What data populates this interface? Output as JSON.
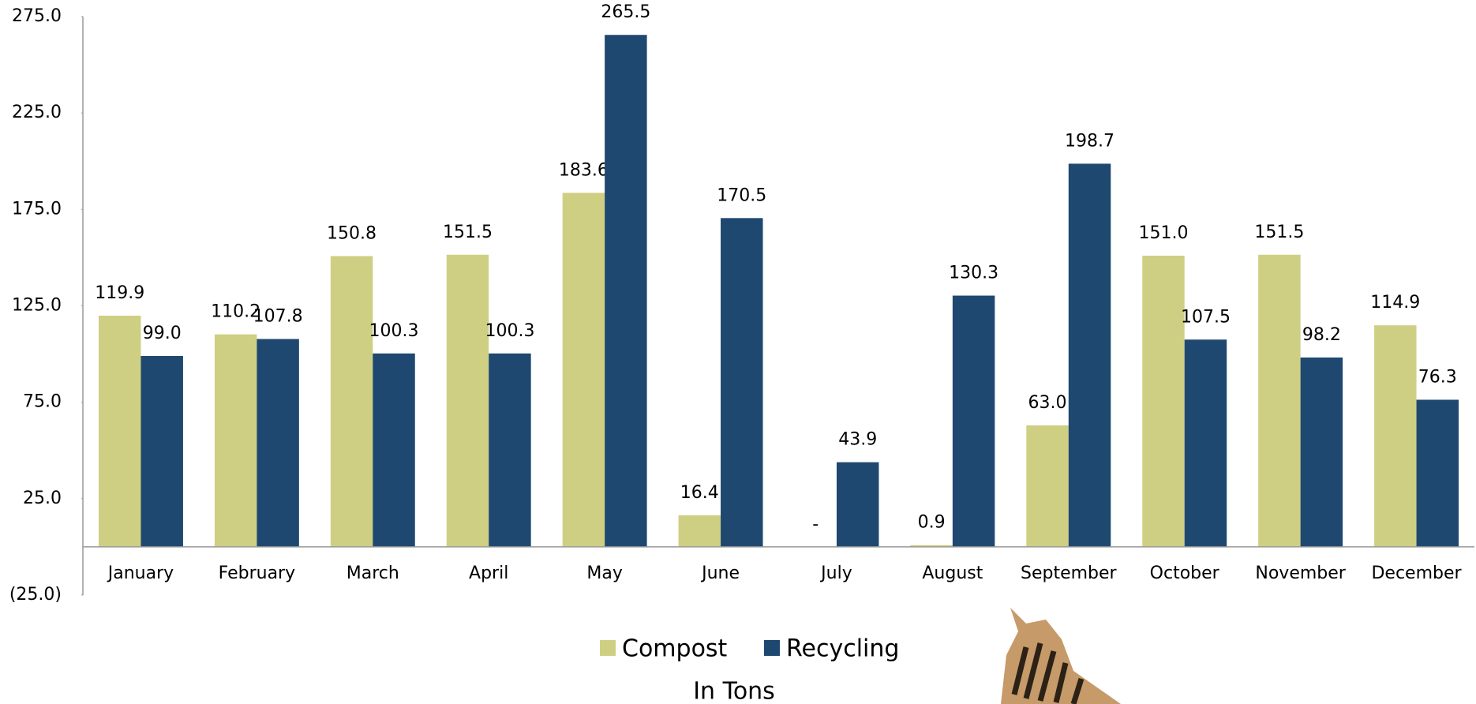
{
  "chart_data": {
    "type": "bar",
    "x_label": "In Tons",
    "categories": [
      "January",
      "February",
      "March",
      "April",
      "May",
      "June",
      "July",
      "August",
      "September",
      "October",
      "November",
      "December"
    ],
    "series": [
      {
        "name": "Compost",
        "color": "#cfcf83",
        "values": [
          119.9,
          110.2,
          150.8,
          151.5,
          183.6,
          16.4,
          0,
          0.9,
          63.0,
          151.0,
          151.5,
          114.9
        ],
        "value_labels": [
          "119.9",
          "110.2",
          "150.8",
          "151.5",
          "183.6",
          "16.4",
          "-",
          "0.9",
          "63.0",
          "151.0",
          "151.5",
          "114.9"
        ]
      },
      {
        "name": "Recycling",
        "color": "#1f4870",
        "values": [
          99.0,
          107.8,
          100.3,
          100.3,
          265.5,
          170.5,
          43.9,
          130.3,
          198.7,
          107.5,
          98.2,
          76.3
        ],
        "value_labels": [
          "99.0",
          "107.8",
          "100.3",
          "100.3",
          "265.5",
          "170.5",
          "43.9",
          "130.3",
          "198.7",
          "107.5",
          "98.2",
          "76.3"
        ]
      }
    ],
    "ylim": [
      -25,
      275
    ],
    "yticks": [
      {
        "value": -25,
        "label": "(25.0)"
      },
      {
        "value": 25,
        "label": "25.0"
      },
      {
        "value": 75,
        "label": "75.0"
      },
      {
        "value": 125,
        "label": "125.0"
      },
      {
        "value": 175,
        "label": "175.0"
      },
      {
        "value": 225,
        "label": "225.0"
      },
      {
        "value": 275,
        "label": "275.0"
      }
    ],
    "grid": false,
    "legend": "bottom"
  }
}
